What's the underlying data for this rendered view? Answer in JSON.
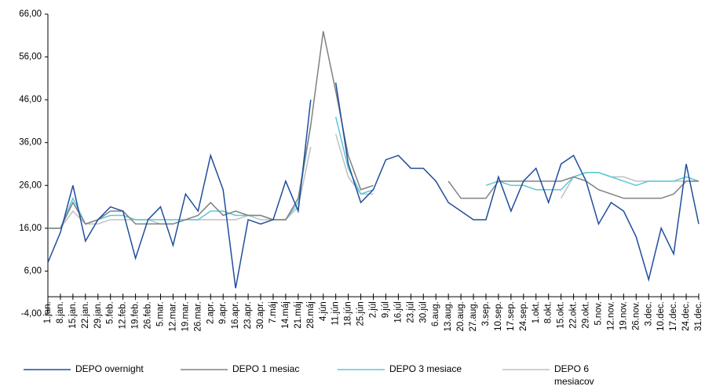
{
  "chart_data": {
    "type": "line",
    "categories": [
      "1.jan.",
      "8.jan.",
      "15.jan.",
      "22.jan.",
      "29.jan.",
      "5.feb.",
      "12.feb.",
      "19.feb.",
      "26.feb.",
      "5.mar.",
      "12.mar.",
      "19.mar.",
      "26.mar.",
      "2.apr.",
      "9.apr.",
      "16.apr.",
      "23.apr.",
      "30.apr.",
      "7.máj",
      "14.máj",
      "21.máj",
      "28.máj",
      "4.jún",
      "11.jún",
      "18.jún",
      "25.jún",
      "2.júl",
      "9.júl",
      "16.júl",
      "23.júl",
      "30.júl",
      "6.aug.",
      "13.aug.",
      "20.aug.",
      "27.aug.",
      "3.sep.",
      "10.sep.",
      "17.sep.",
      "24.sep.",
      "1.okt.",
      "8.okt.",
      "15.okt.",
      "22.okt.",
      "29.okt.",
      "5.nov.",
      "12.nov.",
      "19.nov.",
      "26.nov.",
      "3.dec.",
      "10.dec.",
      "17.dec.",
      "24.dec.",
      "31.dec."
    ],
    "series": [
      {
        "name": "DEPO overnight",
        "color": "#1f4e9c",
        "values": [
          8,
          15,
          26,
          13,
          18,
          21,
          20,
          9,
          18,
          21,
          12,
          24,
          20,
          33,
          25,
          2,
          18,
          17,
          18,
          27,
          20,
          46,
          null,
          50,
          31,
          22,
          25,
          32,
          33,
          30,
          30,
          27,
          22,
          20,
          18,
          18,
          28,
          20,
          27,
          30,
          22,
          31,
          33,
          27,
          17,
          22,
          20,
          14,
          4,
          16,
          10,
          31,
          17
        ]
      },
      {
        "name": "DEPO 1 mesiac",
        "color": "#808080",
        "values": [
          16,
          16,
          22,
          17,
          18,
          20,
          20,
          17,
          17,
          17,
          17,
          18,
          19,
          22,
          19,
          20,
          19,
          19,
          18,
          18,
          23,
          40,
          62,
          48,
          33,
          25,
          26,
          null,
          null,
          null,
          null,
          null,
          27,
          23,
          23,
          23,
          27,
          27,
          27,
          27,
          27,
          27,
          28,
          27,
          25,
          24,
          23,
          23,
          23,
          23,
          24,
          27,
          27
        ]
      },
      {
        "name": "DEPO 3 mesiace",
        "color": "#5bc8d8",
        "values": [
          16,
          16,
          23,
          17,
          18,
          19,
          19,
          18,
          18,
          18,
          18,
          18,
          18,
          20,
          20,
          19,
          19,
          19,
          18,
          18,
          22,
          40,
          null,
          42,
          30,
          24,
          25,
          null,
          null,
          null,
          null,
          null,
          null,
          null,
          null,
          26,
          27,
          26,
          26,
          25,
          25,
          25,
          28,
          29,
          29,
          28,
          27,
          26,
          27,
          27,
          27,
          28,
          27
        ]
      },
      {
        "name": "DEPO 6 mesiacov",
        "color": "#c0c0c0",
        "values": [
          16,
          16,
          20,
          17,
          17,
          18,
          18,
          18,
          18,
          17,
          17,
          18,
          18,
          18,
          18,
          18,
          19,
          18,
          18,
          18,
          21,
          35,
          null,
          38,
          28,
          24,
          24,
          null,
          null,
          null,
          null,
          null,
          null,
          null,
          null,
          null,
          null,
          null,
          null,
          null,
          null,
          23,
          28,
          29,
          29,
          28,
          28,
          27,
          27,
          27,
          27,
          27,
          27
        ]
      }
    ],
    "ylim": [
      -4,
      66
    ],
    "yticks": [
      {
        "value": -4,
        "label": "-4,00"
      },
      {
        "value": 6,
        "label": "6,00"
      },
      {
        "value": 16,
        "label": "16,00"
      },
      {
        "value": 26,
        "label": "26,00"
      },
      {
        "value": 36,
        "label": "36,00"
      },
      {
        "value": 46,
        "label": "46,00"
      },
      {
        "value": 56,
        "label": "56,00"
      },
      {
        "value": 66,
        "label": "66,00"
      }
    ],
    "legend": "bottom"
  }
}
